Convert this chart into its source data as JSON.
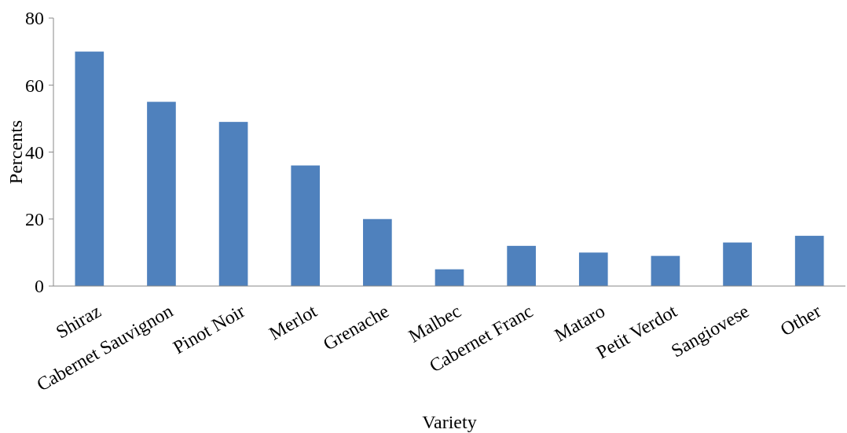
{
  "chart_data": {
    "type": "bar",
    "xlabel": "Variety",
    "ylabel": "Percents",
    "categories": [
      "Shiraz",
      "Cabernet Sauvignon",
      "Pinot Noir",
      "Merlot",
      "Grenache",
      "Malbec",
      "Cabernet Franc",
      "Mataro",
      "Petit Verdot",
      "Sangiovese",
      "Other"
    ],
    "values": [
      70,
      55,
      49,
      36,
      20,
      5,
      12,
      10,
      9,
      13,
      15
    ],
    "color": "#4f81bd",
    "ylim": [
      0,
      80
    ],
    "yticks": [
      0,
      20,
      40,
      60,
      80
    ],
    "grid": false
  }
}
